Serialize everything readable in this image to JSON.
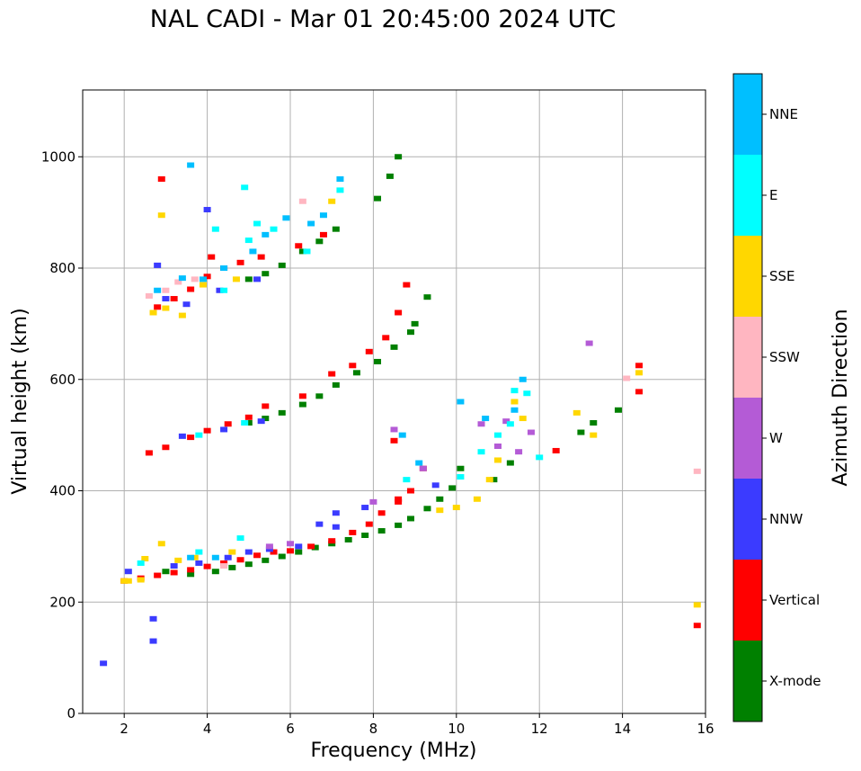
{
  "chart_data": {
    "type": "scatter",
    "title": "NAL CADI - Mar 01 20:45:00 2024 UTC",
    "xlabel": "Frequency (MHz)",
    "ylabel": "Virtual height (km)",
    "xlim": [
      1.0,
      16.0
    ],
    "ylim": [
      0,
      1120
    ],
    "xticks": [
      2,
      4,
      6,
      8,
      10,
      12,
      14,
      16
    ],
    "yticks": [
      0,
      200,
      400,
      600,
      800,
      1000
    ],
    "grid": true,
    "colorbar": {
      "label": "Azimuth Direction",
      "categories": [
        {
          "name": "X-mode",
          "color": "#008000"
        },
        {
          "name": "Vertical",
          "color": "#ff0000"
        },
        {
          "name": "NNW",
          "color": "#3b3bff"
        },
        {
          "name": "W",
          "color": "#b45bd6"
        },
        {
          "name": "SSW",
          "color": "#ffb6c1"
        },
        {
          "name": "SSE",
          "color": "#ffd700"
        },
        {
          "name": "E",
          "color": "#00ffff"
        },
        {
          "name": "NNE",
          "color": "#00bfff"
        }
      ]
    },
    "series": [
      {
        "name": "X-mode",
        "points": [
          [
            4.2,
            255
          ],
          [
            4.6,
            262
          ],
          [
            5.0,
            268
          ],
          [
            5.4,
            275
          ],
          [
            5.8,
            282
          ],
          [
            6.2,
            290
          ],
          [
            6.6,
            298
          ],
          [
            7.0,
            305
          ],
          [
            7.4,
            312
          ],
          [
            7.8,
            320
          ],
          [
            8.2,
            328
          ],
          [
            8.6,
            338
          ],
          [
            8.9,
            350
          ],
          [
            9.3,
            368
          ],
          [
            9.6,
            385
          ],
          [
            9.9,
            405
          ],
          [
            10.1,
            440
          ],
          [
            10.9,
            420
          ],
          [
            11.3,
            450
          ],
          [
            13.0,
            505
          ],
          [
            13.3,
            522
          ],
          [
            13.9,
            545
          ],
          [
            5.0,
            522
          ],
          [
            5.4,
            530
          ],
          [
            5.8,
            540
          ],
          [
            6.3,
            555
          ],
          [
            6.7,
            570
          ],
          [
            7.1,
            590
          ],
          [
            7.6,
            612
          ],
          [
            8.1,
            632
          ],
          [
            8.5,
            658
          ],
          [
            8.9,
            685
          ],
          [
            9.0,
            700
          ],
          [
            9.3,
            748
          ],
          [
            5.0,
            780
          ],
          [
            5.4,
            790
          ],
          [
            5.8,
            805
          ],
          [
            6.3,
            830
          ],
          [
            6.7,
            848
          ],
          [
            7.1,
            870
          ],
          [
            8.1,
            925
          ],
          [
            8.4,
            965
          ],
          [
            8.6,
            1000
          ],
          [
            3.0,
            255
          ],
          [
            3.6,
            250
          ]
        ]
      },
      {
        "name": "Vertical",
        "points": [
          [
            2.0,
            238
          ],
          [
            2.4,
            243
          ],
          [
            2.8,
            248
          ],
          [
            3.2,
            253
          ],
          [
            3.6,
            258
          ],
          [
            4.0,
            264
          ],
          [
            4.4,
            270
          ],
          [
            4.8,
            276
          ],
          [
            5.2,
            284
          ],
          [
            5.6,
            290
          ],
          [
            6.0,
            292
          ],
          [
            6.5,
            300
          ],
          [
            7.0,
            310
          ],
          [
            7.5,
            325
          ],
          [
            7.9,
            340
          ],
          [
            8.2,
            360
          ],
          [
            8.6,
            380
          ],
          [
            8.9,
            400
          ],
          [
            9.2,
            440
          ],
          [
            8.5,
            490
          ],
          [
            2.6,
            468
          ],
          [
            3.0,
            478
          ],
          [
            3.6,
            496
          ],
          [
            4.0,
            508
          ],
          [
            4.5,
            520
          ],
          [
            5.0,
            532
          ],
          [
            5.4,
            552
          ],
          [
            6.3,
            570
          ],
          [
            7.0,
            610
          ],
          [
            7.5,
            625
          ],
          [
            7.9,
            650
          ],
          [
            8.3,
            675
          ],
          [
            8.6,
            720
          ],
          [
            8.8,
            770
          ],
          [
            2.8,
            730
          ],
          [
            3.2,
            745
          ],
          [
            3.6,
            762
          ],
          [
            4.0,
            785
          ],
          [
            4.4,
            800
          ],
          [
            4.8,
            810
          ],
          [
            5.3,
            820
          ],
          [
            6.2,
            840
          ],
          [
            6.8,
            860
          ],
          [
            2.9,
            960
          ],
          [
            12.4,
            472
          ],
          [
            14.4,
            578
          ],
          [
            14.4,
            625
          ],
          [
            15.8,
            158
          ],
          [
            4.1,
            820
          ],
          [
            8.6,
            385
          ]
        ]
      },
      {
        "name": "NNW",
        "points": [
          [
            1.5,
            90
          ],
          [
            2.1,
            255
          ],
          [
            2.7,
            170
          ],
          [
            2.7,
            130
          ],
          [
            3.2,
            265
          ],
          [
            3.8,
            270
          ],
          [
            4.5,
            280
          ],
          [
            5.0,
            290
          ],
          [
            5.5,
            295
          ],
          [
            6.2,
            300
          ],
          [
            6.7,
            340
          ],
          [
            7.1,
            360
          ],
          [
            7.8,
            370
          ],
          [
            3.4,
            498
          ],
          [
            4.4,
            510
          ],
          [
            5.3,
            525
          ],
          [
            3.5,
            735
          ],
          [
            4.3,
            760
          ],
          [
            5.2,
            780
          ],
          [
            4.0,
            905
          ],
          [
            3.0,
            745
          ],
          [
            2.8,
            805
          ],
          [
            7.1,
            335
          ],
          [
            9.5,
            410
          ]
        ]
      },
      {
        "name": "W",
        "points": [
          [
            8.5,
            510
          ],
          [
            9.2,
            440
          ],
          [
            10.6,
            520
          ],
          [
            11.0,
            480
          ],
          [
            11.2,
            525
          ],
          [
            11.5,
            470
          ],
          [
            13.2,
            665
          ],
          [
            6.0,
            305
          ],
          [
            5.5,
            300
          ],
          [
            8.0,
            380
          ],
          [
            11.8,
            505
          ]
        ]
      },
      {
        "name": "SSW",
        "points": [
          [
            3.0,
            760
          ],
          [
            3.3,
            775
          ],
          [
            3.7,
            780
          ],
          [
            2.6,
            750
          ],
          [
            14.1,
            602
          ],
          [
            6.3,
            920
          ],
          [
            15.8,
            435
          ],
          [
            4.4,
            265
          ]
        ]
      },
      {
        "name": "SSE",
        "points": [
          [
            2.0,
            238
          ],
          [
            2.1,
            238
          ],
          [
            2.4,
            240
          ],
          [
            2.5,
            278
          ],
          [
            2.9,
            305
          ],
          [
            3.3,
            275
          ],
          [
            3.7,
            280
          ],
          [
            4.6,
            290
          ],
          [
            9.6,
            365
          ],
          [
            10.0,
            370
          ],
          [
            10.5,
            385
          ],
          [
            10.8,
            420
          ],
          [
            11.0,
            455
          ],
          [
            11.4,
            560
          ],
          [
            11.6,
            530
          ],
          [
            12.9,
            540
          ],
          [
            13.3,
            500
          ],
          [
            14.4,
            612
          ],
          [
            2.7,
            720
          ],
          [
            3.0,
            728
          ],
          [
            3.4,
            715
          ],
          [
            3.9,
            770
          ],
          [
            4.7,
            780
          ],
          [
            15.8,
            195
          ],
          [
            7.0,
            920
          ],
          [
            2.9,
            895
          ]
        ]
      },
      {
        "name": "E",
        "points": [
          [
            2.4,
            270
          ],
          [
            3.8,
            290
          ],
          [
            4.8,
            315
          ],
          [
            4.4,
            760
          ],
          [
            5.0,
            850
          ],
          [
            5.6,
            870
          ],
          [
            6.4,
            830
          ],
          [
            7.2,
            940
          ],
          [
            10.1,
            425
          ],
          [
            10.6,
            470
          ],
          [
            11.0,
            500
          ],
          [
            11.4,
            580
          ],
          [
            11.7,
            575
          ],
          [
            12.0,
            460
          ],
          [
            11.3,
            520
          ],
          [
            4.2,
            870
          ],
          [
            5.2,
            880
          ],
          [
            4.9,
            945
          ],
          [
            3.8,
            500
          ],
          [
            4.9,
            522
          ],
          [
            8.8,
            420
          ]
        ]
      },
      {
        "name": "NNE",
        "points": [
          [
            3.4,
            782
          ],
          [
            3.9,
            780
          ],
          [
            4.4,
            800
          ],
          [
            5.1,
            830
          ],
          [
            5.4,
            860
          ],
          [
            5.9,
            890
          ],
          [
            6.5,
            880
          ],
          [
            7.2,
            960
          ],
          [
            3.6,
            985
          ],
          [
            6.8,
            895
          ],
          [
            4.2,
            280
          ],
          [
            3.6,
            280
          ],
          [
            9.1,
            450
          ],
          [
            8.7,
            500
          ],
          [
            10.1,
            560
          ],
          [
            10.7,
            530
          ],
          [
            11.4,
            545
          ],
          [
            11.6,
            600
          ],
          [
            2.8,
            760
          ]
        ]
      }
    ]
  }
}
